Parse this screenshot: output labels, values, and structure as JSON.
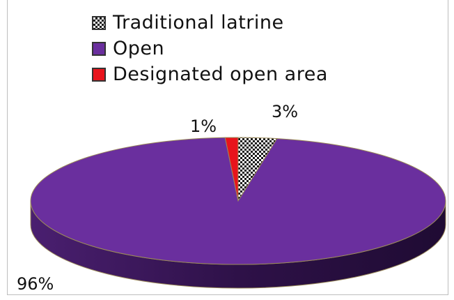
{
  "chart_data": {
    "type": "pie",
    "title": "",
    "slices": [
      {
        "label": "Traditional latrine",
        "value": 3,
        "display": "3%",
        "color": "#2e2e2e",
        "pattern": "checker"
      },
      {
        "label": "Open",
        "value": 96,
        "display": "96%",
        "color": "#6a2f9e",
        "pattern": "solid"
      },
      {
        "label": "Designated open area",
        "value": 1,
        "display": "1%",
        "color": "#e8141c",
        "pattern": "solid"
      }
    ],
    "legend_position": "top",
    "style": "3d"
  }
}
